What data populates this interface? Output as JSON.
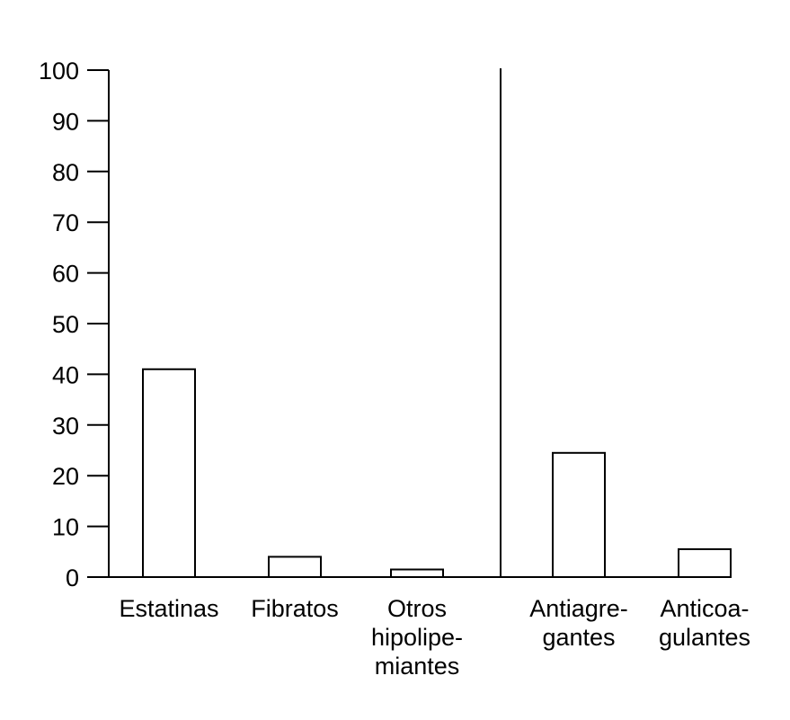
{
  "chart_data": {
    "type": "bar",
    "categories": [
      [
        "Estatinas"
      ],
      [
        "Fibratos"
      ],
      [
        "Otros",
        "hipolipe-",
        "miantes"
      ],
      [
        "Antiagre-",
        "gantes"
      ],
      [
        "Anticoa-",
        "gulantes"
      ]
    ],
    "values": [
      41,
      4,
      1.5,
      24.5,
      5.5
    ],
    "title": "",
    "xlabel": "",
    "ylabel": "",
    "ylim": [
      0,
      100
    ],
    "yticks": [
      "0",
      "10",
      "20",
      "30",
      "40",
      "50",
      "60",
      "70",
      "80",
      "90",
      "100"
    ],
    "grid": false,
    "legend": "none",
    "bar_fill": "#ffffff",
    "bar_stroke": "#000000",
    "group_divider_after_category": 3
  }
}
